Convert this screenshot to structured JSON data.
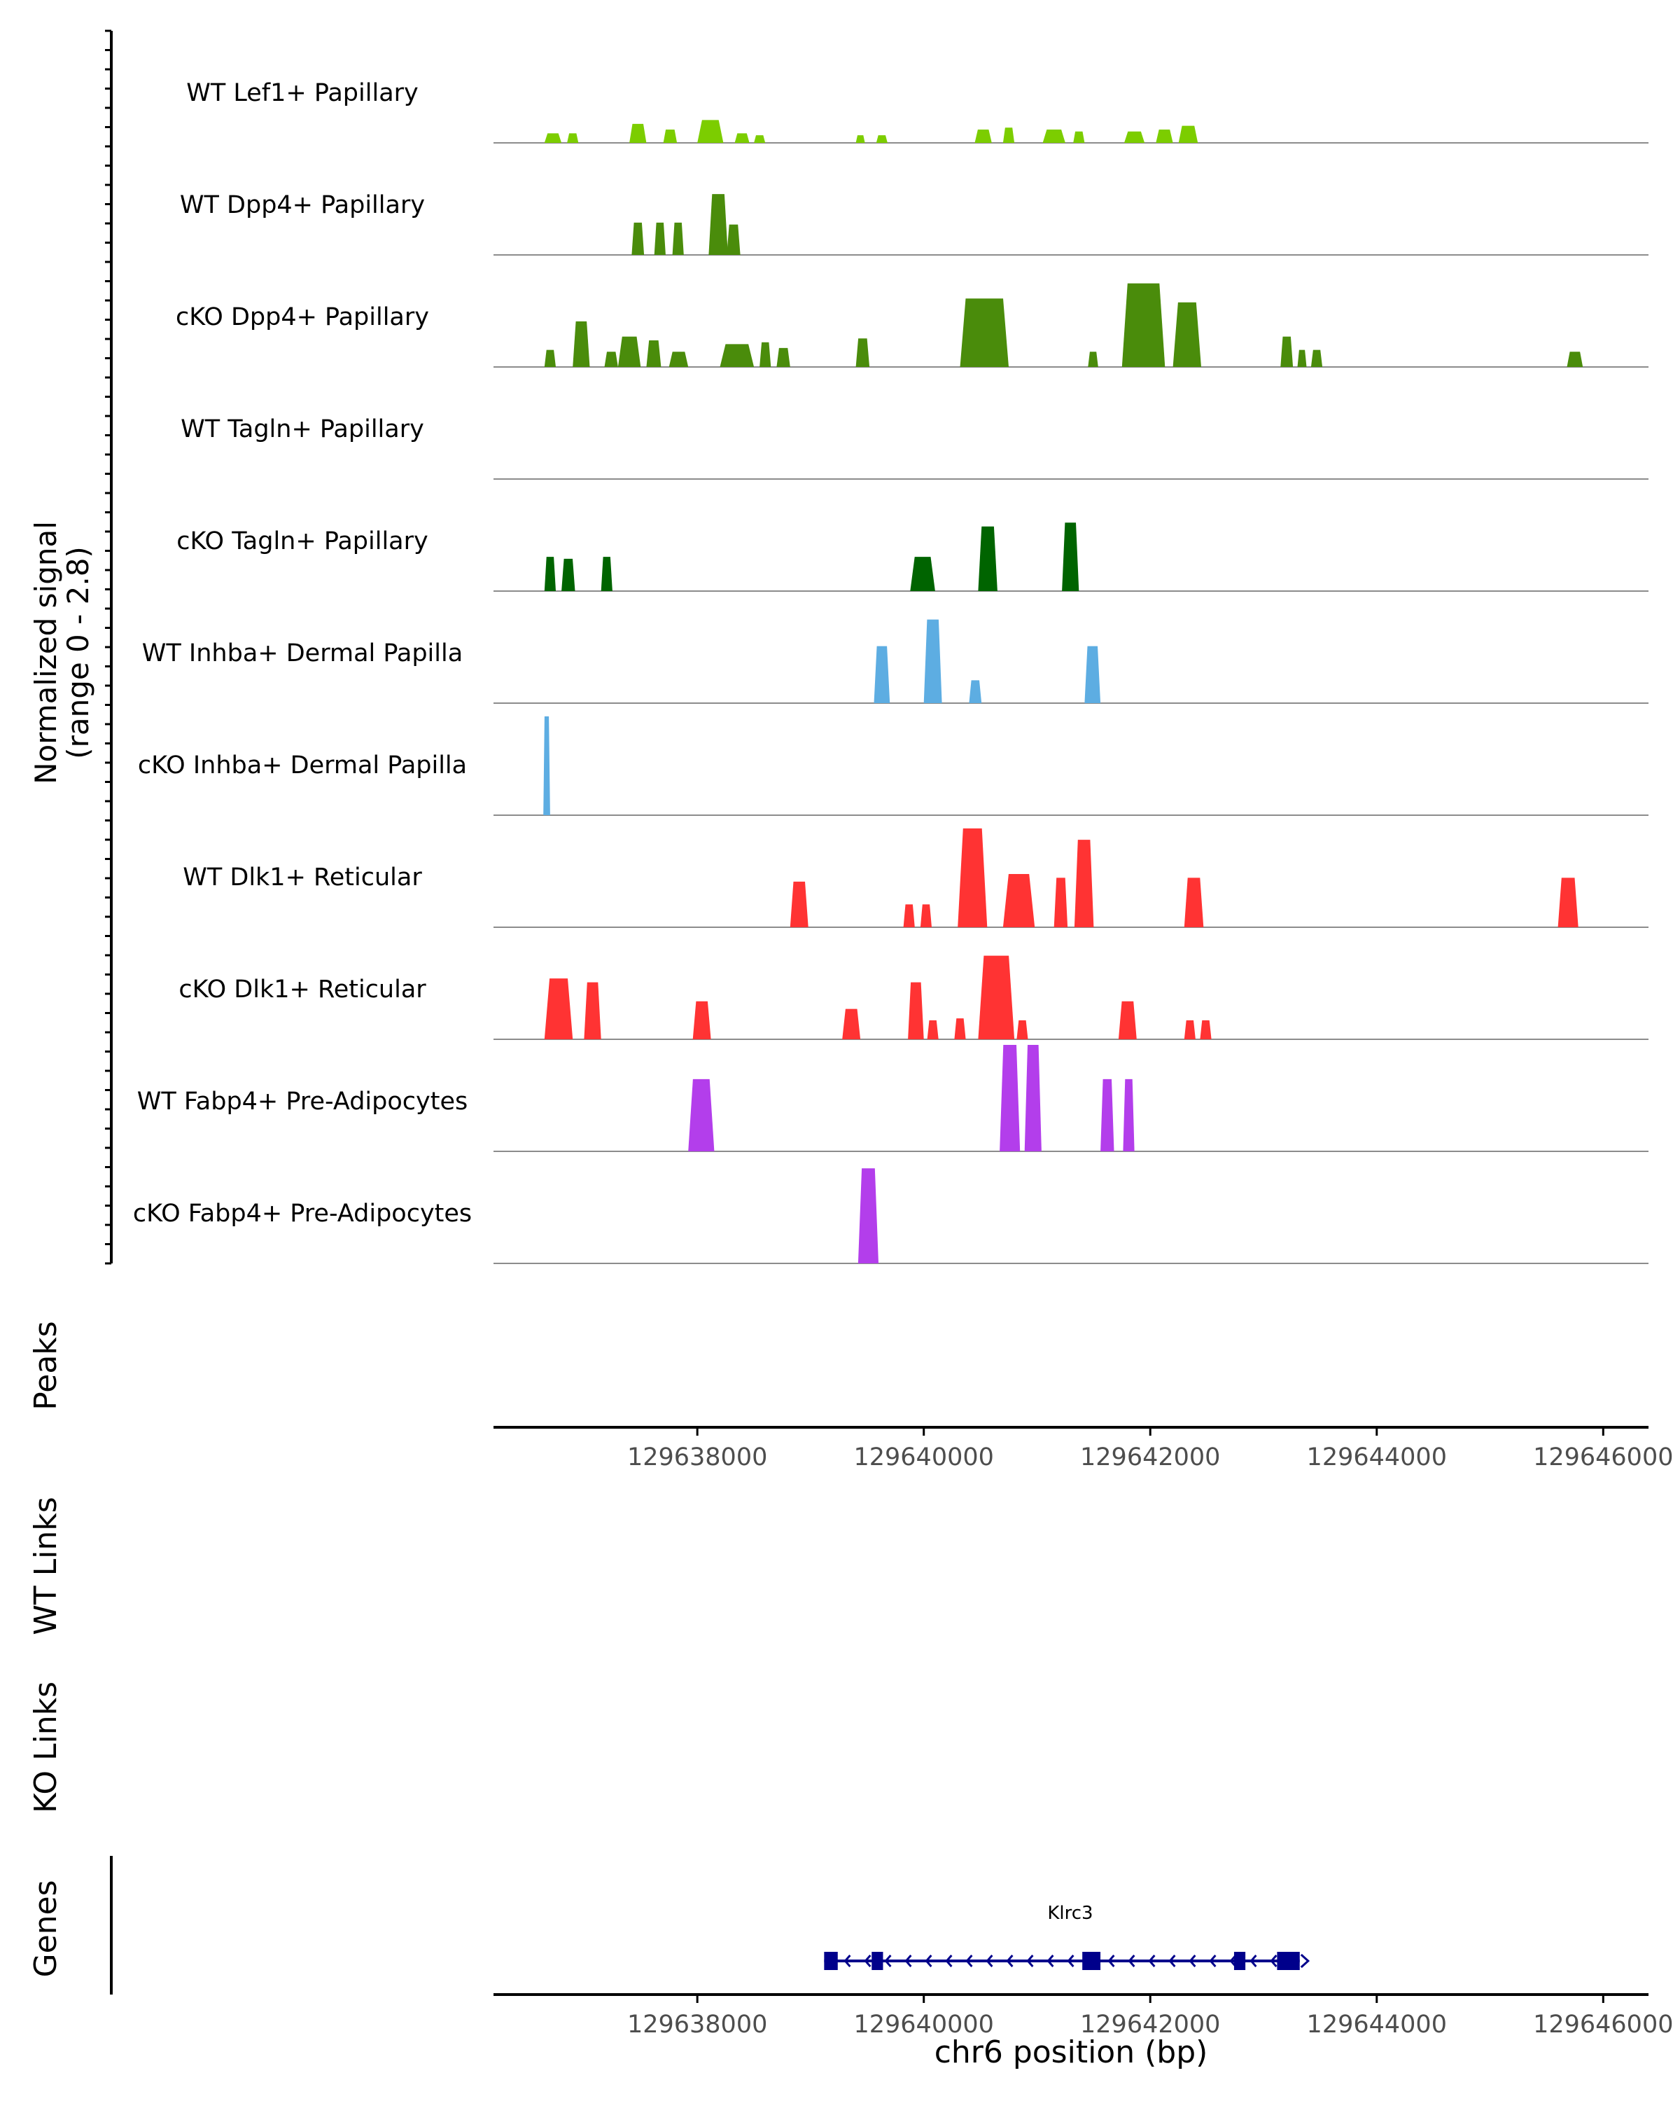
{
  "chart_data": {
    "type": "area",
    "title": "",
    "xlabel": "chr6 position (bp)",
    "signal_axis_label": [
      "Normalized signal",
      "(range 0 - 2.8)"
    ],
    "signal_range": [
      0,
      2.8
    ],
    "xlim": [
      129636200,
      129646400
    ],
    "x_ticks": [
      129638000,
      129640000,
      129642000,
      129644000,
      129646000
    ],
    "x_tick_labels": [
      "129638000",
      "129640000",
      "129642000",
      "129644000",
      "129646000"
    ],
    "tracks": [
      {
        "name": "WT Lef1+ Papillary",
        "color": "#7CCD00",
        "peaks": [
          [
            129636650,
            129636800,
            0.25
          ],
          [
            129636850,
            129636950,
            0.25
          ],
          [
            129637400,
            129637550,
            0.5
          ],
          [
            129637700,
            129637820,
            0.35
          ],
          [
            129638000,
            129638230,
            0.6
          ],
          [
            129638330,
            129638460,
            0.25
          ],
          [
            129638500,
            129638600,
            0.2
          ],
          [
            129639400,
            129639480,
            0.2
          ],
          [
            129639580,
            129639680,
            0.2
          ],
          [
            129640450,
            129640600,
            0.35
          ],
          [
            129640700,
            129640800,
            0.4
          ],
          [
            129641050,
            129641250,
            0.35
          ],
          [
            129641320,
            129641420,
            0.3
          ],
          [
            129641770,
            129641950,
            0.3
          ],
          [
            129642050,
            129642200,
            0.35
          ],
          [
            129642250,
            129642420,
            0.45
          ]
        ]
      },
      {
        "name": "WT Dpp4+ Papillary",
        "color": "#4A8C0B",
        "peaks": [
          [
            129637420,
            129637530,
            0.85
          ],
          [
            129637620,
            129637720,
            0.85
          ],
          [
            129637780,
            129637880,
            0.85
          ],
          [
            129638100,
            129638270,
            1.6
          ],
          [
            129638260,
            129638380,
            0.8
          ]
        ]
      },
      {
        "name": "cKO Dpp4+ Papillary",
        "color": "#4A8C0B",
        "peaks": [
          [
            129636650,
            129636750,
            0.45
          ],
          [
            129636900,
            129637050,
            1.2
          ],
          [
            129637180,
            129637300,
            0.4
          ],
          [
            129637300,
            129637500,
            0.8
          ],
          [
            129637550,
            129637680,
            0.7
          ],
          [
            129637750,
            129637920,
            0.4
          ],
          [
            129638200,
            129638500,
            0.6
          ],
          [
            129638550,
            129638650,
            0.65
          ],
          [
            129638700,
            129638820,
            0.5
          ],
          [
            129639400,
            129639520,
            0.75
          ],
          [
            129640320,
            129640750,
            1.8
          ],
          [
            129641450,
            129641540,
            0.4
          ],
          [
            129641750,
            129642130,
            2.2
          ],
          [
            129642200,
            129642450,
            1.7
          ],
          [
            129643150,
            129643260,
            0.8
          ],
          [
            129643300,
            129643380,
            0.45
          ],
          [
            129643420,
            129643520,
            0.45
          ],
          [
            129645680,
            129645820,
            0.4
          ]
        ]
      },
      {
        "name": "WT Tagln+ Papillary",
        "color": "#006400",
        "peaks": []
      },
      {
        "name": "cKO Tagln+ Papillary",
        "color": "#006400",
        "peaks": [
          [
            129636650,
            129636750,
            0.9
          ],
          [
            129636800,
            129636920,
            0.85
          ],
          [
            129637150,
            129637250,
            0.9
          ],
          [
            129639880,
            129640100,
            0.9
          ],
          [
            129640480,
            129640650,
            1.7
          ],
          [
            129641220,
            129641370,
            1.8
          ]
        ]
      },
      {
        "name": "WT Inhba+ Dermal Papilla",
        "color": "#5DADE2",
        "peaks": [
          [
            129639560,
            129639700,
            1.5
          ],
          [
            129640000,
            129640160,
            2.2
          ],
          [
            129640400,
            129640510,
            0.6
          ],
          [
            129641420,
            129641560,
            1.5
          ]
        ]
      },
      {
        "name": "cKO Inhba+ Dermal Papilla",
        "color": "#5DADE2",
        "peaks": [
          [
            129636640,
            129636700,
            2.6
          ]
        ]
      },
      {
        "name": "WT Dlk1+ Reticular",
        "color": "#FF3333",
        "peaks": [
          [
            129638820,
            129638980,
            1.2
          ],
          [
            129639820,
            129639920,
            0.6
          ],
          [
            129639970,
            129640070,
            0.6
          ],
          [
            129640300,
            129640560,
            2.6
          ],
          [
            129640700,
            129640980,
            1.4
          ],
          [
            129641150,
            129641270,
            1.3
          ],
          [
            129641330,
            129641500,
            2.3
          ],
          [
            129642300,
            129642470,
            1.3
          ],
          [
            129645600,
            129645780,
            1.3
          ]
        ]
      },
      {
        "name": "cKO Dlk1+ Reticular",
        "color": "#FF3333",
        "peaks": [
          [
            129636650,
            129636900,
            1.6
          ],
          [
            129637000,
            129637150,
            1.5
          ],
          [
            129637960,
            129638120,
            1.0
          ],
          [
            129639280,
            129639440,
            0.8
          ],
          [
            129639860,
            129640000,
            1.5
          ],
          [
            129640030,
            129640130,
            0.5
          ],
          [
            129640270,
            129640370,
            0.55
          ],
          [
            129640480,
            129640800,
            2.2
          ],
          [
            129640820,
            129640920,
            0.5
          ],
          [
            129641720,
            129641880,
            1.0
          ],
          [
            129642300,
            129642400,
            0.5
          ],
          [
            129642440,
            129642540,
            0.5
          ]
        ]
      },
      {
        "name": "WT Fabp4+ Pre-Adipocytes",
        "color": "#B33EEB",
        "peaks": [
          [
            129637920,
            129638150,
            1.9
          ],
          [
            129640670,
            129640850,
            2.8
          ],
          [
            129640890,
            129641040,
            2.8
          ],
          [
            129641560,
            129641680,
            1.9
          ],
          [
            129641760,
            129641860,
            1.9
          ]
        ]
      },
      {
        "name": "cKO Fabp4+ Pre-Adipocytes",
        "color": "#B33EEB",
        "peaks": [
          [
            129639420,
            129639600,
            2.5
          ]
        ]
      }
    ],
    "annotation_rows": [
      "Peaks",
      "WT Links",
      "KO Links",
      "Genes"
    ],
    "gene": {
      "name": "Klrc3",
      "strand": "-",
      "start": 129639120,
      "end": 129643320,
      "exons": [
        [
          129639120,
          129639240
        ],
        [
          129639540,
          129639640
        ],
        [
          129641400,
          129641560
        ],
        [
          129642740,
          129642840
        ],
        [
          129643120,
          129643320
        ]
      ],
      "color": "#00008B"
    }
  }
}
